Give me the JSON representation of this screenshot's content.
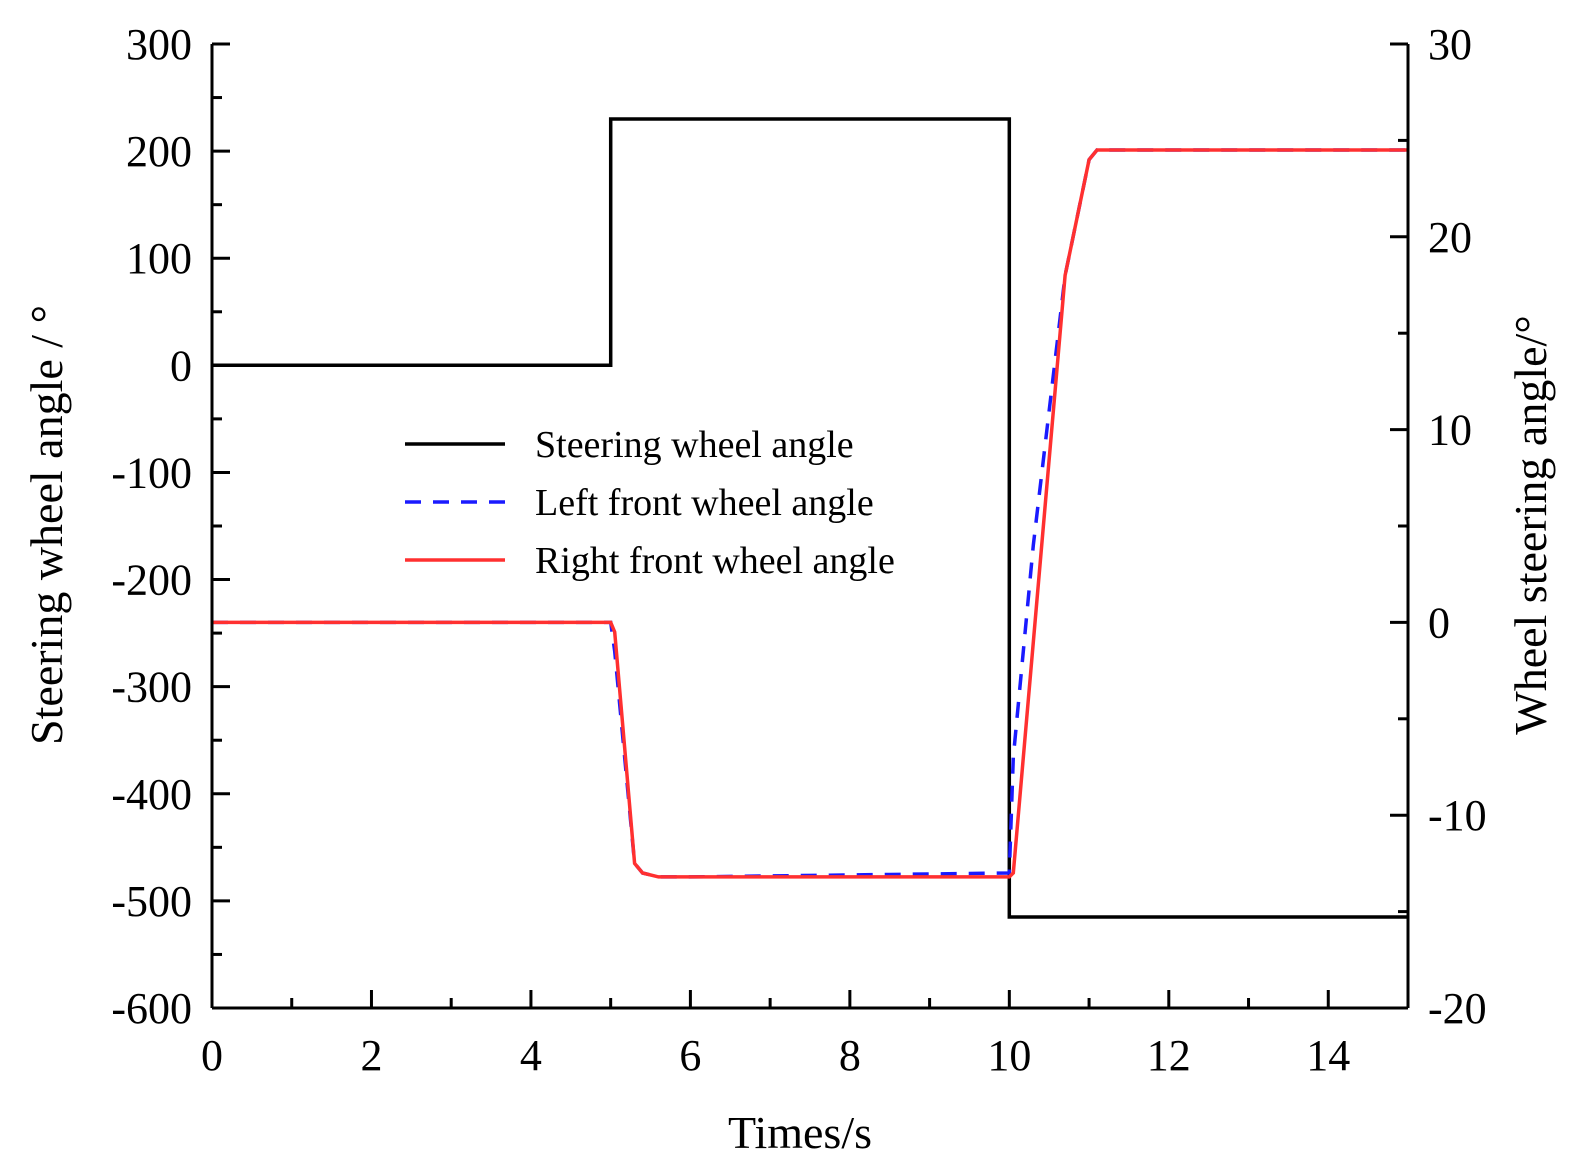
{
  "chart_data": {
    "type": "line",
    "title": "",
    "xlabel": "Times/s",
    "ylabel": "Steering wheel angle / °",
    "ylabel_right": "Wheel steering angle/°",
    "xlim": [
      0,
      15
    ],
    "ylim": [
      -600,
      300
    ],
    "ylim_right": [
      -20,
      30
    ],
    "x_ticks": [
      0,
      2,
      4,
      6,
      8,
      10,
      12,
      14
    ],
    "y_ticks": [
      -600,
      -500,
      -400,
      -300,
      -200,
      -100,
      0,
      100,
      200,
      300
    ],
    "y_ticks_right": [
      -20,
      -10,
      0,
      10,
      20,
      30
    ],
    "grid": false,
    "legend_position": "center-left",
    "series": [
      {
        "name": "Steering wheel angle",
        "axis": "left",
        "color": "#000000",
        "style": "solid",
        "x": [
          0,
          5,
          5,
          10,
          10,
          15
        ],
        "y": [
          0,
          0,
          230,
          230,
          -515,
          -515
        ]
      },
      {
        "name": "Left front wheel angle",
        "axis": "right",
        "color": "#1a1aff",
        "style": "dashed",
        "x": [
          0,
          5,
          5.05,
          5.3,
          5.4,
          5.6,
          6.0,
          10.0,
          10.05,
          10.3,
          10.7,
          11.0,
          11.1,
          15
        ],
        "y": [
          0,
          0,
          -1.5,
          -12.5,
          -13.0,
          -13.2,
          -13.2,
          -13.0,
          -7.0,
          4.0,
          18.0,
          24.0,
          24.5,
          24.5
        ]
      },
      {
        "name": "Right front wheel angle",
        "axis": "right",
        "color": "#ff3030",
        "style": "solid",
        "x": [
          0,
          5,
          5.05,
          5.3,
          5.4,
          5.6,
          6.0,
          10.0,
          10.05,
          10.7,
          11.0,
          11.1,
          15
        ],
        "y": [
          0,
          0,
          -0.5,
          -12.5,
          -13.0,
          -13.2,
          -13.2,
          -13.2,
          -13.0,
          18.0,
          24.0,
          24.5,
          24.5
        ]
      }
    ]
  }
}
